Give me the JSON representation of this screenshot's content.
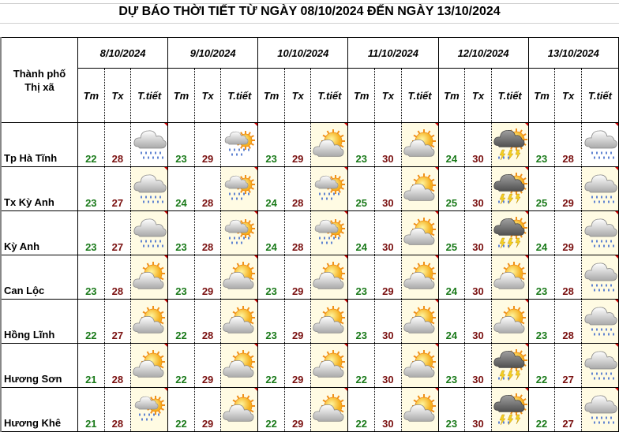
{
  "title": "DỰ BÁO THỜI TIẾT TỪ NGÀY 08/10/2024 ĐẾN NGÀY 13/10/2024",
  "header": {
    "city_label_1": "Thành phố",
    "city_label_2": "Thị xã",
    "tm": "Tm",
    "tx": "Tx",
    "weather": "T.tiết"
  },
  "dates": [
    "8/10/2024",
    "9/10/2024",
    "10/10/2024",
    "11/10/2024",
    "12/10/2024",
    "13/10/2024"
  ],
  "colors": {
    "tmin": "#1a7a1a",
    "tmax": "#7a1010"
  },
  "rows": [
    {
      "city": "Tp Hà Tĩnh",
      "days": [
        {
          "tm": "22",
          "tx": "28",
          "icon": "rain"
        },
        {
          "tm": "23",
          "tx": "29",
          "icon": "sun-cloud-rain"
        },
        {
          "tm": "23",
          "tx": "29",
          "icon": "sun-cloud"
        },
        {
          "tm": "23",
          "tx": "30",
          "icon": "sun-cloud"
        },
        {
          "tm": "24",
          "tx": "30",
          "icon": "thunderstorm"
        },
        {
          "tm": "23",
          "tx": "28",
          "icon": "rain"
        }
      ]
    },
    {
      "city": "Tx Kỳ Anh",
      "days": [
        {
          "tm": "23",
          "tx": "27",
          "icon": "rain"
        },
        {
          "tm": "24",
          "tx": "28",
          "icon": "sun-cloud-rain"
        },
        {
          "tm": "24",
          "tx": "28",
          "icon": "sun-cloud-rain"
        },
        {
          "tm": "25",
          "tx": "30",
          "icon": "sun-cloud"
        },
        {
          "tm": "25",
          "tx": "30",
          "icon": "thunderstorm"
        },
        {
          "tm": "25",
          "tx": "29",
          "icon": "rain"
        }
      ]
    },
    {
      "city": "Kỳ Anh",
      "days": [
        {
          "tm": "23",
          "tx": "27",
          "icon": "rain"
        },
        {
          "tm": "23",
          "tx": "28",
          "icon": "sun-cloud-rain"
        },
        {
          "tm": "24",
          "tx": "28",
          "icon": "sun-cloud-rain"
        },
        {
          "tm": "24",
          "tx": "30",
          "icon": "sun-cloud"
        },
        {
          "tm": "25",
          "tx": "30",
          "icon": "thunderstorm"
        },
        {
          "tm": "24",
          "tx": "29",
          "icon": "rain"
        }
      ]
    },
    {
      "city": "Can Lộc",
      "days": [
        {
          "tm": "23",
          "tx": "28",
          "icon": "sun-cloud"
        },
        {
          "tm": "23",
          "tx": "29",
          "icon": "sun-cloud"
        },
        {
          "tm": "23",
          "tx": "29",
          "icon": "sun-cloud"
        },
        {
          "tm": "23",
          "tx": "29",
          "icon": "sun-cloud"
        },
        {
          "tm": "24",
          "tx": "30",
          "icon": "sun-cloud"
        },
        {
          "tm": "23",
          "tx": "28",
          "icon": "rain"
        }
      ]
    },
    {
      "city": "Hồng Lĩnh",
      "days": [
        {
          "tm": "22",
          "tx": "27",
          "icon": "sun-cloud"
        },
        {
          "tm": "22",
          "tx": "28",
          "icon": "sun-cloud"
        },
        {
          "tm": "23",
          "tx": "29",
          "icon": "sun-cloud"
        },
        {
          "tm": "23",
          "tx": "30",
          "icon": "sun-cloud"
        },
        {
          "tm": "24",
          "tx": "30",
          "icon": "sun-cloud"
        },
        {
          "tm": "23",
          "tx": "28",
          "icon": "rain"
        }
      ]
    },
    {
      "city": "Hương Sơn",
      "days": [
        {
          "tm": "21",
          "tx": "28",
          "icon": "sun-cloud"
        },
        {
          "tm": "22",
          "tx": "29",
          "icon": "sun-cloud"
        },
        {
          "tm": "22",
          "tx": "29",
          "icon": "sun-cloud"
        },
        {
          "tm": "22",
          "tx": "30",
          "icon": "sun-cloud"
        },
        {
          "tm": "23",
          "tx": "30",
          "icon": "thunderstorm"
        },
        {
          "tm": "22",
          "tx": "27",
          "icon": "rain"
        }
      ]
    },
    {
      "city": "Hương Khê",
      "days": [
        {
          "tm": "21",
          "tx": "28",
          "icon": "sun-cloud-rain"
        },
        {
          "tm": "22",
          "tx": "29",
          "icon": "sun-cloud"
        },
        {
          "tm": "22",
          "tx": "29",
          "icon": "sun-cloud"
        },
        {
          "tm": "22",
          "tx": "30",
          "icon": "sun-cloud"
        },
        {
          "tm": "23",
          "tx": "30",
          "icon": "thunderstorm"
        },
        {
          "tm": "22",
          "tx": "27",
          "icon": "rain"
        }
      ]
    }
  ]
}
